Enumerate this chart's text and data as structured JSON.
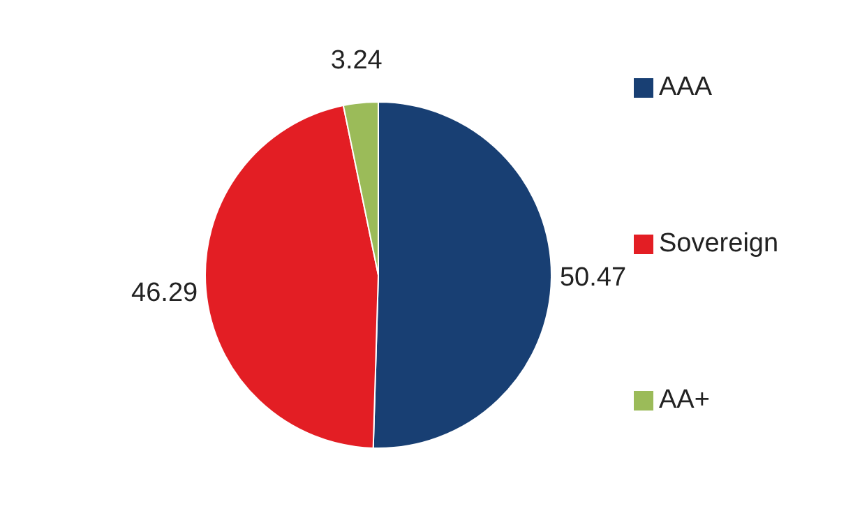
{
  "chart_data": {
    "type": "pie",
    "categories": [
      "AAA",
      "Sovereign",
      "AA+"
    ],
    "values": [
      50.47,
      46.29,
      3.24
    ],
    "colors": [
      "#183f73",
      "#e31e24",
      "#9bbb59"
    ],
    "data_labels": true,
    "legend": "right"
  }
}
